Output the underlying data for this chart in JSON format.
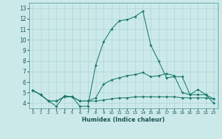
{
  "xlabel": "Humidex (Indice chaleur)",
  "xlim": [
    -0.5,
    23.5
  ],
  "ylim": [
    3.5,
    13.5
  ],
  "yticks": [
    4,
    5,
    6,
    7,
    8,
    9,
    10,
    11,
    12,
    13
  ],
  "xticks": [
    0,
    1,
    2,
    3,
    4,
    5,
    6,
    7,
    8,
    9,
    10,
    11,
    12,
    13,
    14,
    15,
    16,
    17,
    18,
    19,
    20,
    21,
    22,
    23
  ],
  "background_color": "#cce9e9",
  "line_color": "#1a7a6e",
  "grid_color": "#aad4d4",
  "series": [
    [
      5.2,
      4.8,
      4.2,
      3.7,
      4.7,
      4.6,
      3.7,
      3.7,
      7.6,
      9.8,
      11.0,
      11.8,
      11.9,
      12.2,
      12.7,
      9.5,
      8.0,
      6.4,
      6.5,
      6.5,
      4.8,
      5.3,
      4.8,
      4.0
    ],
    [
      5.2,
      4.8,
      4.2,
      4.2,
      4.6,
      4.6,
      4.2,
      4.2,
      4.5,
      5.8,
      6.2,
      6.4,
      6.6,
      6.7,
      6.9,
      6.5,
      6.6,
      6.8,
      6.6,
      5.0,
      4.8,
      4.8,
      4.8,
      4.4
    ],
    [
      5.2,
      4.8,
      4.2,
      4.2,
      4.6,
      4.6,
      4.2,
      4.2,
      4.2,
      4.3,
      4.4,
      4.5,
      4.5,
      4.6,
      4.6,
      4.6,
      4.6,
      4.6,
      4.6,
      4.5,
      4.5,
      4.5,
      4.5,
      4.4
    ]
  ]
}
